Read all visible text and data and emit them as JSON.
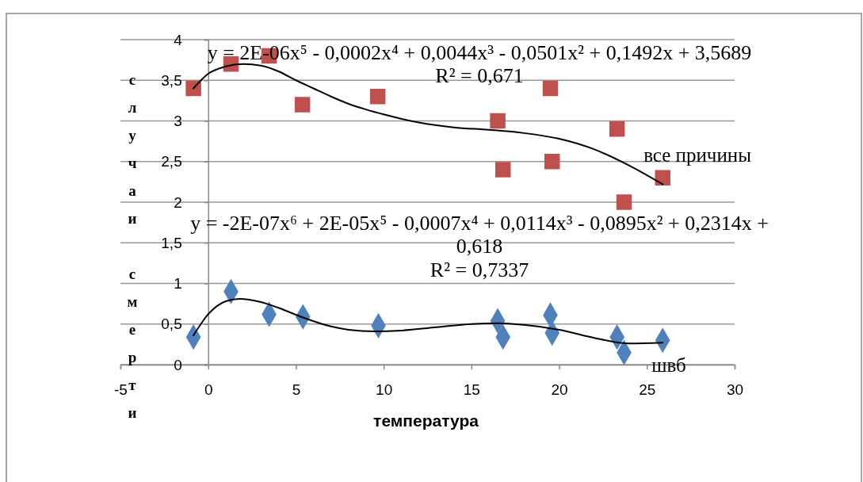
{
  "chart_data": {
    "type": "scatter",
    "xlabel": "температура",
    "ylabel": "случаи смерти",
    "xlim": [
      -5,
      30
    ],
    "xticks": [
      -5,
      0,
      5,
      10,
      15,
      20,
      25,
      30
    ],
    "ylim": [
      0,
      4
    ],
    "yticks": [
      {
        "value": 0,
        "label": "0"
      },
      {
        "value": 0.5,
        "label": "0,5"
      },
      {
        "value": 1,
        "label": "1"
      },
      {
        "value": 1.5,
        "label": "1,5"
      },
      {
        "value": 2,
        "label": "2"
      },
      {
        "value": 2.5,
        "label": "2,5"
      },
      {
        "value": 3,
        "label": "3"
      },
      {
        "value": 3.5,
        "label": "3,5"
      },
      {
        "value": 4,
        "label": "4"
      }
    ],
    "grid": "y",
    "series": [
      {
        "name": "все причины",
        "marker": "square",
        "color": "#c0504d",
        "x": [
          -0.84,
          1.3,
          3.47,
          5.37,
          9.66,
          16.5,
          16.8,
          19.5,
          19.6,
          23.3,
          23.7,
          25.9
        ],
        "values": [
          3.4,
          3.7,
          3.8,
          3.2,
          3.3,
          3.0,
          2.4,
          3.4,
          2.5,
          2.9,
          2.0,
          2.3
        ]
      },
      {
        "name": "швб",
        "marker": "diamond",
        "color": "#4f81bd",
        "x": [
          -0.84,
          1.3,
          3.47,
          5.4,
          9.7,
          16.5,
          16.8,
          19.5,
          19.6,
          23.3,
          23.7,
          25.9
        ],
        "values": [
          0.34,
          0.9,
          0.62,
          0.59,
          0.48,
          0.54,
          0.34,
          0.61,
          0.39,
          0.34,
          0.15,
          0.3
        ]
      },
      {
        "type": "line",
        "marker": "none",
        "line_style": "solid",
        "color": "#000000",
        "x": [
          -0.84,
          0,
          1,
          2,
          3,
          4,
          5,
          6,
          7,
          8,
          9,
          10,
          12,
          14,
          16,
          18,
          20,
          22,
          24,
          25.9
        ],
        "values": [
          3.4,
          3.58,
          3.67,
          3.7,
          3.68,
          3.61,
          3.5,
          3.4,
          3.3,
          3.21,
          3.14,
          3.08,
          2.98,
          2.92,
          2.89,
          2.85,
          2.78,
          2.65,
          2.45,
          2.22
        ]
      },
      {
        "type": "line",
        "marker": "none",
        "line_style": "solid",
        "color": "#000000",
        "x": [
          -0.84,
          0,
          1,
          1.8,
          3,
          4,
          5.4,
          7,
          8,
          9.5,
          11,
          13,
          15,
          16.5,
          18,
          20,
          22,
          24,
          25.9
        ],
        "values": [
          0.36,
          0.62,
          0.78,
          0.81,
          0.77,
          0.7,
          0.58,
          0.47,
          0.43,
          0.41,
          0.42,
          0.46,
          0.5,
          0.51,
          0.49,
          0.43,
          0.33,
          0.26,
          0.27
        ]
      }
    ],
    "annotations": [
      "y = 2E-06x⁵ - 0,0002x⁴ + 0,0044x³ - 0,0501x² + 0,1492x + 3,5689",
      "R² = 0,671",
      "y = -2E-07x⁶ + 2E-05x⁵ - 0,0007x⁴ + 0,0114x³ - 0,0895x² + 0,2314x + 0,618",
      "R² = 0,7337"
    ]
  }
}
